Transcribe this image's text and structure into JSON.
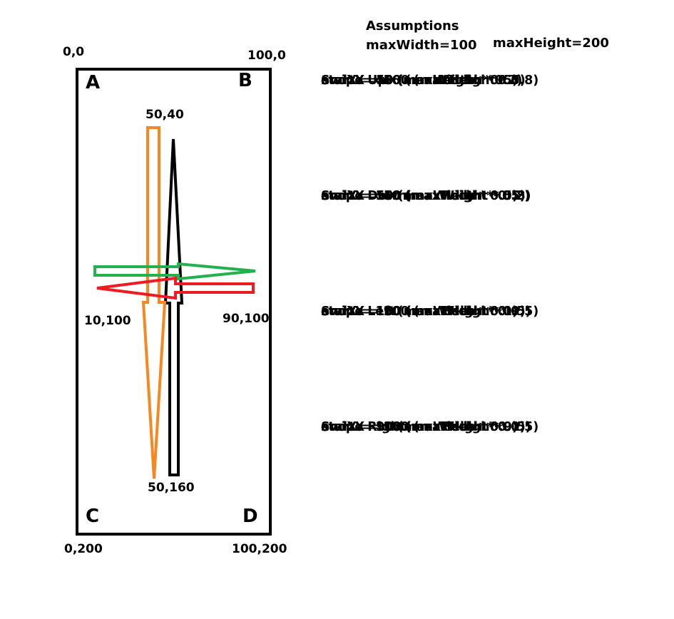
{
  "assumptions": {
    "title": "Assumptions",
    "max_width": "maxWidth=100",
    "max_height": "maxHeight=200"
  },
  "screen": {
    "coords": {
      "top_left": "0,0",
      "top_right": "100,0",
      "bottom_left": "0,200",
      "bottom_right": "100,200",
      "top_point": "50,40",
      "bottom_point": "50,160",
      "left_point": "10,100",
      "right_point": "90,100"
    },
    "corners": {
      "a": "A",
      "b": "B",
      "c": "C",
      "d": "D"
    }
  },
  "colors": {
    "swipe_up_arrow": "#000000",
    "swipe_down_arrow": "#f7871f",
    "swipe_right_arrow": "#22b14c",
    "swipe_left_arrow": "#ed1c24"
  },
  "swipes": {
    "up": {
      "title": "Swipe Up",
      "lines": [
        "startX = 50 (maxWidth * 0.5)",
        "startY = 160 (maxHeight * 0.8)",
        "endX = 50 (maxWidth * 0.5)",
        "endY = 40 (maxHeight * 0.2)"
      ]
    },
    "down": {
      "title": "Swipe Down",
      "lines": [
        "startX = 50 (maxWidth * 0.5)",
        "startY = 40 (maxHeight * 0.2)",
        "endX = 50 (maxWidth * 0.5)",
        "endY = 160 (maxHeight * 0.8)"
      ]
    },
    "left": {
      "title": "Swipe Left",
      "lines": [
        "startX = 90 (maxWidth * 0.9)",
        "startY = 100 (maxHeight * 0.5)",
        "endX = 10 (maxWidth * 0.1)",
        "endY = 100 (maxHeight * 0.5)"
      ]
    },
    "right": {
      "title": "Swipe Right",
      "lines": [
        "startX = 10 (maxWidth * 0.1)",
        "startY = 100 (maxHeight * 0.5)",
        "endX = 90 (maxWidth * 0.9)",
        "endY = 100 (maxHeight * 0.5)"
      ]
    }
  }
}
